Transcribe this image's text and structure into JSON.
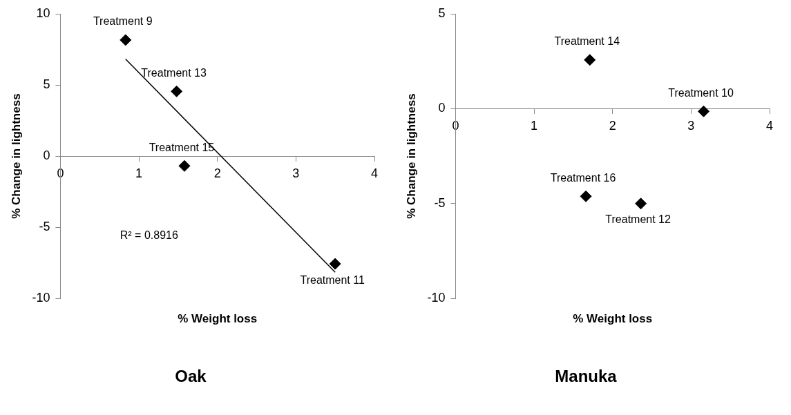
{
  "chart_data": [
    {
      "type": "scatter",
      "title": "Oak",
      "xlabel": "% Weight loss",
      "ylabel": "% Change in lightness",
      "xlim": [
        0,
        4
      ],
      "xticks": [
        0,
        1,
        2,
        3,
        4
      ],
      "ylim": [
        -10,
        10
      ],
      "yticks": [
        -10,
        -5,
        0,
        5,
        10
      ],
      "marker": "diamond",
      "legend": false,
      "series": [
        {
          "type": "scatter",
          "color": "#000000",
          "x": [
            0.83,
            1.48,
            1.58,
            3.5
          ],
          "values": [
            8.16,
            4.55,
            -0.69,
            -7.57
          ]
        },
        {
          "type": "line",
          "color": "#000000",
          "marker": "none",
          "x": [
            0.83,
            3.5
          ],
          "values": [
            6.82,
            -8.16
          ]
        }
      ],
      "annotations": [
        {
          "text": "Treatment 9",
          "x": 0.83,
          "y": 8.16
        },
        {
          "text": "Treatment 13",
          "x": 1.48,
          "y": 4.55
        },
        {
          "text": "Treatment 15",
          "x": 1.58,
          "y": -0.69
        },
        {
          "text": "Treatment 11",
          "x": 3.5,
          "y": -7.57
        },
        "R² = 0.8916"
      ]
    },
    {
      "type": "scatter",
      "title": "Manuka",
      "xlabel": "% Weight loss",
      "ylabel": "% Change in lightness",
      "xlim": [
        0,
        4
      ],
      "xticks": [
        0,
        1,
        2,
        3,
        4
      ],
      "ylim": [
        -10,
        5
      ],
      "yticks": [
        -10,
        -5,
        0,
        5
      ],
      "marker": "diamond",
      "legend": false,
      "series": [
        {
          "type": "scatter",
          "color": "#000000",
          "x": [
            1.71,
            3.16,
            1.66,
            2.36
          ],
          "values": [
            2.57,
            -0.14,
            -4.62,
            -5.0
          ]
        }
      ],
      "annotations": [
        {
          "text": "Treatment 14",
          "x": 1.71,
          "y": 2.57
        },
        {
          "text": "Treatment 10",
          "x": 3.16,
          "y": -0.14
        },
        {
          "text": "Treatment 16",
          "x": 1.66,
          "y": -4.62
        },
        {
          "text": "Treatment 12",
          "x": 2.36,
          "y": -5.0
        }
      ]
    }
  ]
}
